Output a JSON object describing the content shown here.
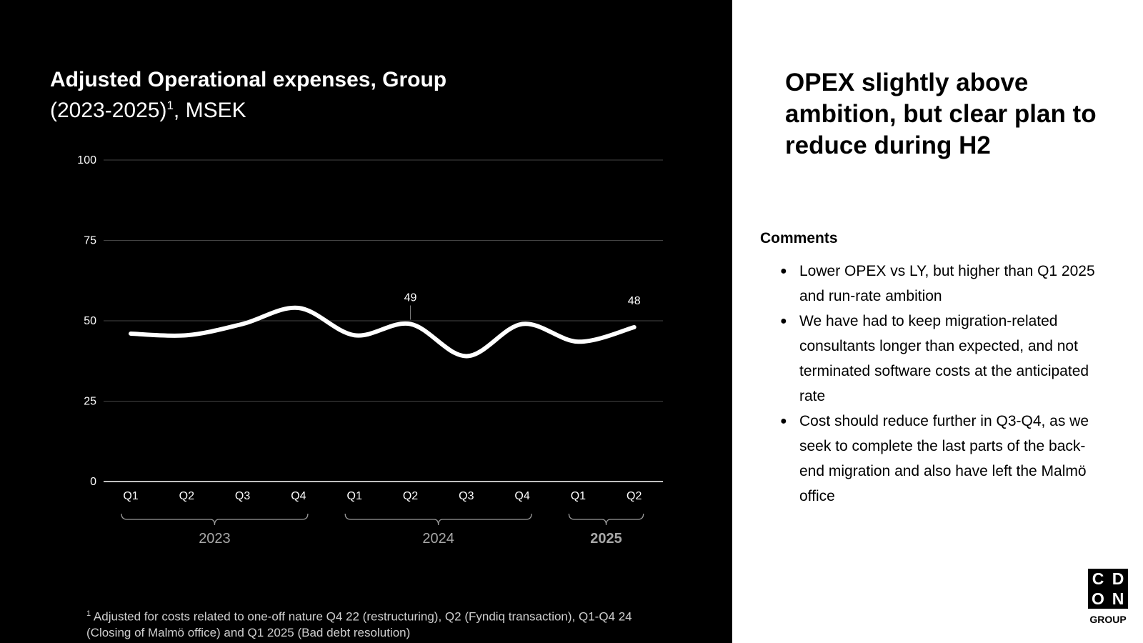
{
  "chart_title": {
    "bold": "Adjusted Operational expenses, Group",
    "sub": "(2023-2025)",
    "sup": "1",
    "unit": ", MSEK"
  },
  "chart_data": {
    "type": "line",
    "categories": [
      "Q1",
      "Q2",
      "Q3",
      "Q4",
      "Q1",
      "Q2",
      "Q3",
      "Q4",
      "Q1",
      "Q2"
    ],
    "groups": [
      {
        "label": "2023",
        "start": 0,
        "end": 3,
        "bold": false
      },
      {
        "label": "2024",
        "start": 4,
        "end": 7,
        "bold": false
      },
      {
        "label": "2025",
        "start": 8,
        "end": 9,
        "bold": true
      }
    ],
    "series": [
      {
        "values": [
          46,
          45.5,
          49,
          54,
          45.5,
          49,
          39,
          49,
          43.5,
          48
        ]
      }
    ],
    "data_labels": [
      {
        "index": 5,
        "text": "49"
      },
      {
        "index": 9,
        "text": "48"
      }
    ],
    "ylim": [
      0,
      100
    ],
    "yticks": [
      0,
      25,
      50,
      75,
      100
    ],
    "grid": true,
    "line_color": "#ffffff",
    "grid_color": "#444444"
  },
  "footnote": {
    "sup": "1",
    "text": "Adjusted for costs related to one-off nature Q4 22 (restructuring), Q2 (Fyndiq transaction), Q1-Q4 24 (Closing of Malmö office) and Q1 2025 (Bad debt resolution)"
  },
  "headline": "OPEX slightly above ambition, but clear plan to reduce during H2",
  "comments": {
    "heading": "Comments",
    "items": [
      "Lower OPEX vs LY, but higher than Q1 2025 and run-rate ambition",
      "We have had to keep migration-related consultants longer than expected, and not terminated software costs at the anticipated rate",
      "Cost should reduce further in Q3-Q4, as we seek to complete the last parts of the back-end migration and also have left the Malmö office"
    ],
    "bullet": "●"
  },
  "logo": {
    "letters": [
      "C",
      "D",
      "O",
      "N"
    ],
    "sub": "GROUP"
  }
}
